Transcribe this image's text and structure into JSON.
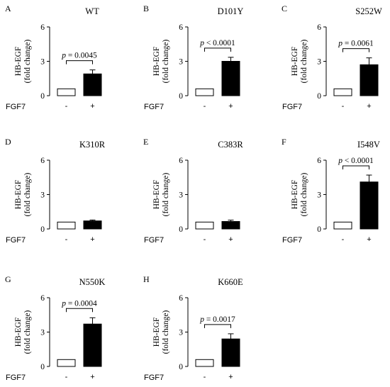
{
  "figure": {
    "ylabel_line1": "HB-EGF",
    "ylabel_line2": "(fold change)",
    "xlabel": "FGF7",
    "tick_minus": "-",
    "tick_plus": "+",
    "y_ticks": [
      "0",
      "3",
      "6"
    ],
    "bar_colors": {
      "minus": "#ffffff",
      "plus": "#000000"
    }
  },
  "chart_data": [
    {
      "type": "bar",
      "panel": "A",
      "title": "WT",
      "categories": [
        "-",
        "+"
      ],
      "values": [
        0.6,
        1.9
      ],
      "errors": [
        0,
        0.35
      ],
      "pvalue": "p = 0.0045",
      "ylim": [
        0,
        6
      ],
      "yticks": [
        0,
        3,
        6
      ],
      "ylabel": "HB-EGF (fold change)",
      "xlabel": "FGF7"
    },
    {
      "type": "bar",
      "panel": "B",
      "title": "D101Y",
      "categories": [
        "-",
        "+"
      ],
      "values": [
        0.6,
        3.0
      ],
      "errors": [
        0,
        0.35
      ],
      "pvalue": "p < 0.0001",
      "ylim": [
        0,
        6
      ],
      "yticks": [
        0,
        3,
        6
      ],
      "ylabel": "HB-EGF (fold change)",
      "xlabel": "FGF7"
    },
    {
      "type": "bar",
      "panel": "C",
      "title": "S252W",
      "categories": [
        "-",
        "+"
      ],
      "values": [
        0.6,
        2.7
      ],
      "errors": [
        0,
        0.6
      ],
      "pvalue": "p = 0.0061",
      "ylim": [
        0,
        6
      ],
      "yticks": [
        0,
        3,
        6
      ],
      "ylabel": "HB-EGF (fold change)",
      "xlabel": "FGF7"
    },
    {
      "type": "bar",
      "panel": "D",
      "title": "K310R",
      "categories": [
        "-",
        "+"
      ],
      "values": [
        0.6,
        0.7
      ],
      "errors": [
        0,
        0.08
      ],
      "pvalue": "",
      "ylim": [
        0,
        6
      ],
      "yticks": [
        0,
        3,
        6
      ],
      "ylabel": "HB-EGF (fold change)",
      "xlabel": "FGF7"
    },
    {
      "type": "bar",
      "panel": "E",
      "title": "C383R",
      "categories": [
        "-",
        "+"
      ],
      "values": [
        0.6,
        0.65
      ],
      "errors": [
        0,
        0.12
      ],
      "pvalue": "",
      "ylim": [
        0,
        6
      ],
      "yticks": [
        0,
        3,
        6
      ],
      "ylabel": "HB-EGF (fold change)",
      "xlabel": "FGF7"
    },
    {
      "type": "bar",
      "panel": "F",
      "title": "I548V",
      "categories": [
        "-",
        "+"
      ],
      "values": [
        0.6,
        4.1
      ],
      "errors": [
        0,
        0.6
      ],
      "pvalue": "p < 0.0001",
      "ylim": [
        0,
        6
      ],
      "yticks": [
        0,
        3,
        6
      ],
      "ylabel": "HB-EGF (fold change)",
      "xlabel": "FGF7"
    },
    {
      "type": "bar",
      "panel": "G",
      "title": "N550K",
      "categories": [
        "-",
        "+"
      ],
      "values": [
        0.6,
        3.7
      ],
      "errors": [
        0,
        0.55
      ],
      "pvalue": "p = 0.0004",
      "ylim": [
        0,
        6
      ],
      "yticks": [
        0,
        3,
        6
      ],
      "ylabel": "HB-EGF (fold change)",
      "xlabel": "FGF7"
    },
    {
      "type": "bar",
      "panel": "H",
      "title": "K660E",
      "categories": [
        "-",
        "+"
      ],
      "values": [
        0.6,
        2.4
      ],
      "errors": [
        0,
        0.45
      ],
      "pvalue": "p = 0.0017",
      "ylim": [
        0,
        6
      ],
      "yticks": [
        0,
        3,
        6
      ],
      "ylabel": "HB-EGF (fold change)",
      "xlabel": "FGF7"
    }
  ]
}
